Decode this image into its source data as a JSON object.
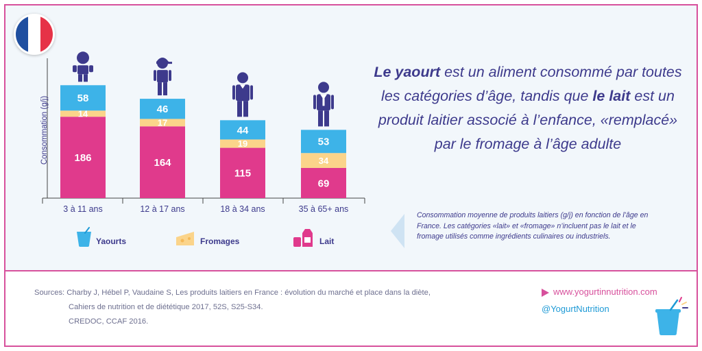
{
  "flag": {
    "colors": [
      "#1f4fa0",
      "#ffffff",
      "#e63247"
    ]
  },
  "chart_data": {
    "type": "bar",
    "stacked": true,
    "ylabel": "Consommation (g/j)",
    "categories": [
      "3 à 11 ans",
      "12 à 17 ans",
      "18 à 34 ans",
      "35 à 65+ ans"
    ],
    "series": [
      {
        "name": "Lait",
        "color": "#e03a8c",
        "values": [
          186,
          164,
          115,
          69
        ]
      },
      {
        "name": "Fromages",
        "color": "#fbd48a",
        "values": [
          14,
          17,
          19,
          34
        ]
      },
      {
        "name": "Yaourts",
        "color": "#3db3e8",
        "values": [
          58,
          46,
          44,
          53
        ]
      }
    ],
    "legend_icons": [
      "yogurt-cup-icon",
      "cheese-icon",
      "milk-icon"
    ],
    "figure_icons": [
      "child-icon",
      "teen-icon",
      "adult-icon",
      "senior-icon"
    ]
  },
  "headline": {
    "part1": "Le yaourt",
    "part2": " est un aliment consommé par toutes les catégories d’âge, tandis que ",
    "part3": "le lait",
    "part4": " est un produit laitier associé à l’enfance, «remplacé» par le fromage à l’âge adulte"
  },
  "note": "Consommation moyenne de produits laitiers (g/j) en fonction de l’âge en France. Les catégories «lait» et «fromage» n’incluent pas le lait et le fromage utilisés comme ingrédients culinaires ou industriels.",
  "sources": {
    "line1": "Sources: Charby J, Hébel P, Vaudaine S, Les produits laitiers en France : évolution du marché et place dans la diète,",
    "line2": "Cahiers de nutrition et de diététique 2017, 52S, S25-S34.",
    "line3": "CREDOC, CCAF 2016."
  },
  "links": {
    "website": "www.yogurtinnutrition.com",
    "twitter": "@YogurtNutrition"
  },
  "colors": {
    "accent": "#d7509c",
    "headline": "#3d3a8c",
    "blue": "#1e9ad6"
  }
}
